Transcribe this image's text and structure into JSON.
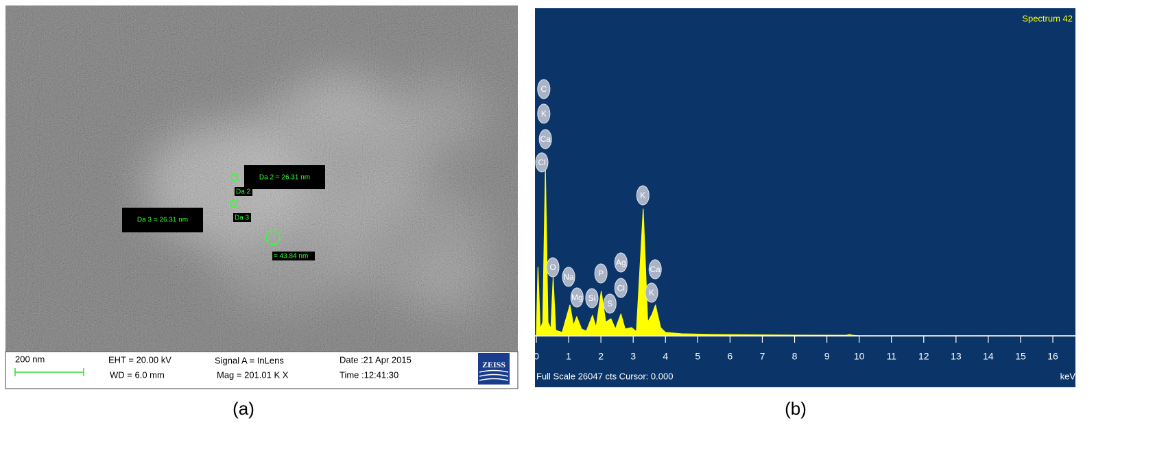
{
  "panel_a": {
    "label": "(a)",
    "annotations": [
      "Da 2 = 26.31 nm",
      "Da 2",
      "Da 3",
      "Da 3 = 26.31 nm",
      "= 43.84 nm"
    ],
    "info": {
      "scale": "200 nm",
      "eht": "EHT = 20.00 kV",
      "wd": "WD =  6.0 mm",
      "signal": "Signal A = InLens",
      "mag": "Mag = 201.01 K X",
      "date": "Date :21 Apr 2015",
      "time": "Time :12:41:30",
      "logo": "ZEISS"
    }
  },
  "chart_data": {
    "type": "area",
    "title": "Spectrum 42",
    "panel_label": "(b)",
    "x_label": "keV",
    "footer": "Full Scale 26047 cts Cursor: 0.000",
    "color": "#ffff00",
    "background": "#0b3569",
    "x": [
      0,
      0.05,
      0.12,
      0.2,
      0.28,
      0.36,
      0.45,
      0.52,
      0.6,
      0.8,
      1.04,
      1.15,
      1.25,
      1.4,
      1.55,
      1.74,
      1.85,
      2.01,
      2.15,
      2.31,
      2.45,
      2.62,
      2.75,
      2.95,
      3.1,
      3.31,
      3.45,
      3.59,
      3.69,
      3.85,
      4.0,
      4.5,
      5.5,
      8.0,
      9.6,
      9.7,
      9.8,
      10.0,
      16.7
    ],
    "values": [
      0,
      5450,
      545,
      1090,
      13350,
      1090,
      545,
      4630,
      436,
      273,
      2450,
      818,
      1530,
      545,
      380,
      1635,
      654,
      3540,
      1090,
      1360,
      545,
      1745,
      545,
      654,
      327,
      10080,
      1090,
      1745,
      2450,
      654,
      273,
      163,
      109,
      55,
      40,
      109,
      40,
      0,
      0
    ],
    "xlim": [
      0,
      16.7
    ],
    "xticks": [
      0,
      1,
      2,
      3,
      4,
      5,
      6,
      7,
      8,
      9,
      10,
      11,
      12,
      13,
      14,
      15,
      16
    ],
    "ylim": [
      0,
      26047
    ],
    "peak_labels": [
      {
        "label": "C",
        "x": 0.23,
        "y": 19620
      },
      {
        "label": "K",
        "x": 0.23,
        "y": 17660
      },
      {
        "label": "Ca",
        "x": 0.28,
        "y": 15640
      },
      {
        "label": "Cl",
        "x": 0.17,
        "y": 13790
      },
      {
        "label": "O",
        "x": 0.51,
        "y": 5450
      },
      {
        "label": "Na",
        "x": 1.0,
        "y": 4690
      },
      {
        "label": "Mg",
        "x": 1.26,
        "y": 3050
      },
      {
        "label": "Si",
        "x": 1.72,
        "y": 3000
      },
      {
        "label": "P",
        "x": 2.0,
        "y": 4960
      },
      {
        "label": "S",
        "x": 2.28,
        "y": 2560
      },
      {
        "label": "Ag",
        "x": 2.62,
        "y": 5830
      },
      {
        "label": "Cl",
        "x": 2.62,
        "y": 3810
      },
      {
        "label": "K",
        "x": 3.3,
        "y": 11170
      },
      {
        "label": "Ca",
        "x": 3.68,
        "y": 5290
      },
      {
        "label": "K",
        "x": 3.57,
        "y": 3430
      }
    ]
  }
}
